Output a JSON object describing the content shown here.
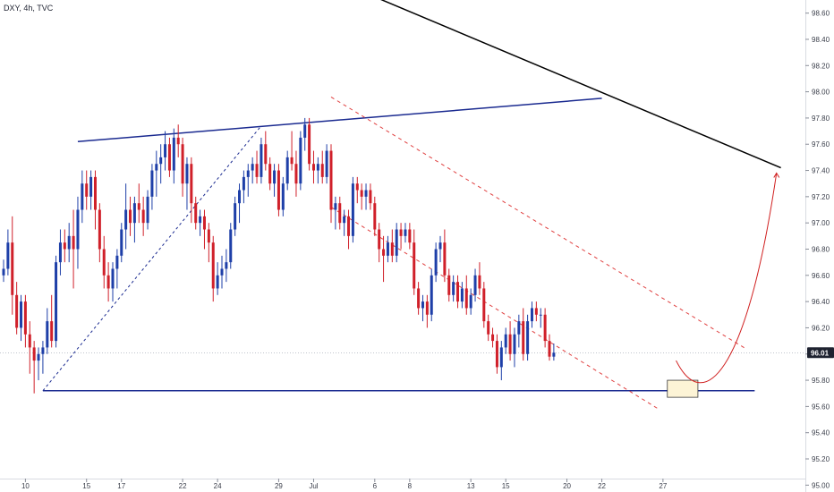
{
  "header": {
    "symbol_label": "DXY, 4h, TVC"
  },
  "colors": {
    "up": "#1e3fa8",
    "down": "#d0202a",
    "trendline_blue": "#1a2a90",
    "trendline_black": "#000000",
    "channel": "#e04040",
    "projection": "#d02020",
    "axis_bg": "#ffffff",
    "current_price_bg": "#1e2230"
  },
  "current_price": {
    "label": "96.01",
    "value": 96.01
  },
  "chart_data": {
    "type": "candlestick",
    "title": "",
    "xlabel": "",
    "ylabel": "",
    "ylim": [
      95.05,
      98.7
    ],
    "y_ticks": [
      "98.60",
      "98.40",
      "98.20",
      "98.00",
      "97.80",
      "97.60",
      "97.40",
      "97.20",
      "97.00",
      "96.80",
      "96.60",
      "96.40",
      "96.20",
      "96.00",
      "95.80",
      "95.60",
      "95.40",
      "95.20",
      "95.00"
    ],
    "x_ticks": [
      {
        "label": "10",
        "bar": 5
      },
      {
        "label": "15",
        "bar": 19
      },
      {
        "label": "17",
        "bar": 27
      },
      {
        "label": "22",
        "bar": 41
      },
      {
        "label": "24",
        "bar": 49
      },
      {
        "label": "29",
        "bar": 63
      },
      {
        "label": "Jul",
        "bar": 71
      },
      {
        "label": "6",
        "bar": 85
      },
      {
        "label": "8",
        "bar": 93
      },
      {
        "label": "13",
        "bar": 107
      },
      {
        "label": "15",
        "bar": 115
      },
      {
        "label": "20",
        "bar": 129
      },
      {
        "label": "22",
        "bar": 137
      },
      {
        "label": "27",
        "bar": 151
      }
    ],
    "bars": [
      [
        96.6,
        96.72,
        96.55,
        96.65
      ],
      [
        96.65,
        96.95,
        96.6,
        96.85
      ],
      [
        96.85,
        97.05,
        96.3,
        96.45
      ],
      [
        96.45,
        96.55,
        96.15,
        96.2
      ],
      [
        96.2,
        96.45,
        96.1,
        96.4
      ],
      [
        96.4,
        96.45,
        96.05,
        96.15
      ],
      [
        96.15,
        96.25,
        95.85,
        96.05
      ],
      [
        96.05,
        96.1,
        95.7,
        95.95
      ],
      [
        95.95,
        96.05,
        95.8,
        96.0
      ],
      [
        96.0,
        96.1,
        95.85,
        96.05
      ],
      [
        96.05,
        96.35,
        96.0,
        96.25
      ],
      [
        96.25,
        96.45,
        96.05,
        96.1
      ],
      [
        96.1,
        96.75,
        96.05,
        96.7
      ],
      [
        96.7,
        96.95,
        96.6,
        96.85
      ],
      [
        96.85,
        96.95,
        96.7,
        96.8
      ],
      [
        96.8,
        97.0,
        96.7,
        96.9
      ],
      [
        96.9,
        97.1,
        96.5,
        96.8
      ],
      [
        96.8,
        97.2,
        96.65,
        97.1
      ],
      [
        97.1,
        97.4,
        97.0,
        97.3
      ],
      [
        97.3,
        97.4,
        97.1,
        97.2
      ],
      [
        97.2,
        97.4,
        97.1,
        97.35
      ],
      [
        97.35,
        97.4,
        96.95,
        97.1
      ],
      [
        97.1,
        97.15,
        96.7,
        96.8
      ],
      [
        96.8,
        96.9,
        96.5,
        96.6
      ],
      [
        96.6,
        96.7,
        96.4,
        96.5
      ],
      [
        96.5,
        96.7,
        96.4,
        96.65
      ],
      [
        96.65,
        96.8,
        96.5,
        96.75
      ],
      [
        96.75,
        97.0,
        96.7,
        96.95
      ],
      [
        96.95,
        97.3,
        96.8,
        97.1
      ],
      [
        97.1,
        97.2,
        96.9,
        97.0
      ],
      [
        97.0,
        97.2,
        96.85,
        97.15
      ],
      [
        97.15,
        97.3,
        97.0,
        97.1
      ],
      [
        97.1,
        97.2,
        96.9,
        97.0
      ],
      [
        97.0,
        97.25,
        96.95,
        97.2
      ],
      [
        97.2,
        97.45,
        97.1,
        97.4
      ],
      [
        97.4,
        97.55,
        97.2,
        97.45
      ],
      [
        97.45,
        97.6,
        97.3,
        97.5
      ],
      [
        97.5,
        97.7,
        97.4,
        97.6
      ],
      [
        97.6,
        97.65,
        97.35,
        97.4
      ],
      [
        97.4,
        97.72,
        97.3,
        97.65
      ],
      [
        97.65,
        97.75,
        97.5,
        97.6
      ],
      [
        97.6,
        97.65,
        97.2,
        97.3
      ],
      [
        97.3,
        97.5,
        97.1,
        97.45
      ],
      [
        97.45,
        97.5,
        97.0,
        97.15
      ],
      [
        97.15,
        97.2,
        96.95,
        97.0
      ],
      [
        97.0,
        97.1,
        96.9,
        97.05
      ],
      [
        97.05,
        97.1,
        96.8,
        96.95
      ],
      [
        96.95,
        97.0,
        96.7,
        96.85
      ],
      [
        96.85,
        96.9,
        96.4,
        96.5
      ],
      [
        96.5,
        96.7,
        96.45,
        96.6
      ],
      [
        96.6,
        96.75,
        96.5,
        96.65
      ],
      [
        96.65,
        96.8,
        96.55,
        96.7
      ],
      [
        96.7,
        97.0,
        96.65,
        96.95
      ],
      [
        96.95,
        97.2,
        96.9,
        97.15
      ],
      [
        97.15,
        97.3,
        97.0,
        97.25
      ],
      [
        97.25,
        97.4,
        97.15,
        97.35
      ],
      [
        97.35,
        97.45,
        97.2,
        97.4
      ],
      [
        97.4,
        97.5,
        97.3,
        97.45
      ],
      [
        97.45,
        97.55,
        97.3,
        97.35
      ],
      [
        97.35,
        97.65,
        97.3,
        97.6
      ],
      [
        97.6,
        97.7,
        97.4,
        97.45
      ],
      [
        97.45,
        97.5,
        97.25,
        97.3
      ],
      [
        97.3,
        97.45,
        97.2,
        97.4
      ],
      [
        97.4,
        97.45,
        97.05,
        97.1
      ],
      [
        97.1,
        97.35,
        97.05,
        97.3
      ],
      [
        97.3,
        97.55,
        97.25,
        97.5
      ],
      [
        97.5,
        97.7,
        97.4,
        97.45
      ],
      [
        97.45,
        97.55,
        97.2,
        97.3
      ],
      [
        97.3,
        97.7,
        97.25,
        97.65
      ],
      [
        97.65,
        97.8,
        97.55,
        97.75
      ],
      [
        97.75,
        97.8,
        97.4,
        97.45
      ],
      [
        97.45,
        97.55,
        97.3,
        97.4
      ],
      [
        97.4,
        97.5,
        97.3,
        97.45
      ],
      [
        97.45,
        97.55,
        97.3,
        97.35
      ],
      [
        97.35,
        97.6,
        97.3,
        97.55
      ],
      [
        97.55,
        97.6,
        97.0,
        97.1
      ],
      [
        97.1,
        97.2,
        96.95,
        97.15
      ],
      [
        97.15,
        97.2,
        96.95,
        97.0
      ],
      [
        97.0,
        97.1,
        96.9,
        97.05
      ],
      [
        97.05,
        97.1,
        96.8,
        96.9
      ],
      [
        96.9,
        97.35,
        96.85,
        97.3
      ],
      [
        97.3,
        97.35,
        97.15,
        97.25
      ],
      [
        97.25,
        97.3,
        97.1,
        97.2
      ],
      [
        97.2,
        97.3,
        97.1,
        97.25
      ],
      [
        97.25,
        97.3,
        97.1,
        97.15
      ],
      [
        97.15,
        97.2,
        96.9,
        96.95
      ],
      [
        96.95,
        97.0,
        96.7,
        96.8
      ],
      [
        96.8,
        96.9,
        96.55,
        96.75
      ],
      [
        96.75,
        96.9,
        96.7,
        96.85
      ],
      [
        96.85,
        96.95,
        96.7,
        96.75
      ],
      [
        96.75,
        97.0,
        96.7,
        96.95
      ],
      [
        96.95,
        97.0,
        96.8,
        96.9
      ],
      [
        96.9,
        97.0,
        96.85,
        96.95
      ],
      [
        96.95,
        97.0,
        96.8,
        96.85
      ],
      [
        96.85,
        96.95,
        96.45,
        96.5
      ],
      [
        96.5,
        96.55,
        96.3,
        96.35
      ],
      [
        96.35,
        96.45,
        96.25,
        96.4
      ],
      [
        96.4,
        96.45,
        96.2,
        96.3
      ],
      [
        96.3,
        96.65,
        96.25,
        96.6
      ],
      [
        96.6,
        96.85,
        96.55,
        96.8
      ],
      [
        96.8,
        96.9,
        96.7,
        96.85
      ],
      [
        96.85,
        96.95,
        96.55,
        96.6
      ],
      [
        96.6,
        96.65,
        96.4,
        96.45
      ],
      [
        96.45,
        96.6,
        96.4,
        96.55
      ],
      [
        96.55,
        96.6,
        96.35,
        96.4
      ],
      [
        96.4,
        96.55,
        96.35,
        96.5
      ],
      [
        96.5,
        96.6,
        96.3,
        96.35
      ],
      [
        96.35,
        96.5,
        96.3,
        96.45
      ],
      [
        96.45,
        96.65,
        96.4,
        96.6
      ],
      [
        96.6,
        96.7,
        96.45,
        96.5
      ],
      [
        96.5,
        96.55,
        96.2,
        96.25
      ],
      [
        96.25,
        96.3,
        96.1,
        96.15
      ],
      [
        96.15,
        96.2,
        96.05,
        96.1
      ],
      [
        96.1,
        96.15,
        95.85,
        95.9
      ],
      [
        95.9,
        96.1,
        95.8,
        96.05
      ],
      [
        96.05,
        96.2,
        96.0,
        96.15
      ],
      [
        96.15,
        96.25,
        95.95,
        96.0
      ],
      [
        96.0,
        96.2,
        95.9,
        96.15
      ],
      [
        96.15,
        96.3,
        96.05,
        96.25
      ],
      [
        96.25,
        96.35,
        95.95,
        96.0
      ],
      [
        96.0,
        96.3,
        95.95,
        96.25
      ],
      [
        96.25,
        96.4,
        96.2,
        96.35
      ],
      [
        96.35,
        96.4,
        96.25,
        96.3
      ],
      [
        96.3,
        96.35,
        96.2,
        96.3
      ],
      [
        96.3,
        96.35,
        96.05,
        96.1
      ],
      [
        96.1,
        96.15,
        95.95,
        95.98
      ],
      [
        95.98,
        96.08,
        95.95,
        96.01
      ]
    ]
  }
}
